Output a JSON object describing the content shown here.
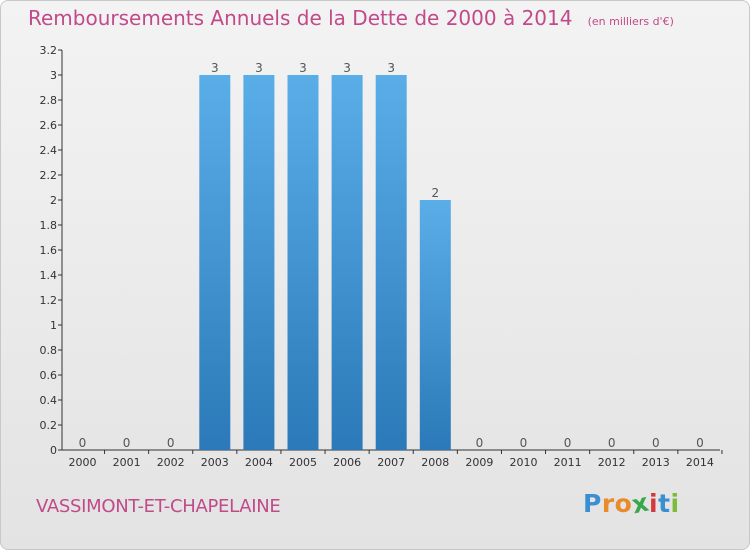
{
  "chart_data": {
    "type": "bar",
    "title": "Remboursements Annuels de la Dette de 2000 à 2014",
    "unit_label": "(en milliers d'€)",
    "categories": [
      "2000",
      "2001",
      "2002",
      "2003",
      "2004",
      "2005",
      "2006",
      "2007",
      "2008",
      "2009",
      "2010",
      "2011",
      "2012",
      "2013",
      "2014"
    ],
    "values": [
      0,
      0,
      0,
      3,
      3,
      3,
      3,
      3,
      2,
      0,
      0,
      0,
      0,
      0,
      0
    ],
    "data_labels": [
      "0",
      "0",
      "0",
      "3",
      "3",
      "3",
      "3",
      "3",
      "2",
      "0",
      "0",
      "0",
      "0",
      "0",
      "0"
    ],
    "ylim": [
      0,
      3.2
    ],
    "y_ticks": [
      "0",
      "0.2",
      "0.4",
      "0.6",
      "0.8",
      "1",
      "1.2",
      "1.4",
      "1.6",
      "1.8",
      "2",
      "2.2",
      "2.4",
      "2.6",
      "2.8",
      "3",
      "3.2"
    ],
    "y_tick_values": [
      0,
      0.2,
      0.4,
      0.6,
      0.8,
      1,
      1.2,
      1.4,
      1.6,
      1.8,
      2,
      2.2,
      2.4,
      2.6,
      2.8,
      3,
      3.2
    ],
    "xlabel": "",
    "ylabel": "",
    "grid": false,
    "bar_color_top": "#5aaee8",
    "bar_color_bottom": "#2b79b8"
  },
  "footer": {
    "commune": "VASSIMONT-ET-CHAPELAINE"
  },
  "logo": {
    "text": "Proxiti",
    "letters": [
      "P",
      "r",
      "o",
      "x",
      "i",
      "t",
      "i"
    ],
    "letter_colors": [
      "#3a8fd0",
      "#e98a2b",
      "#e98a2b",
      "#3aa84a",
      "#d33b3b",
      "#3a8fd0",
      "#7dbb3a"
    ]
  },
  "colors": {
    "title": "#c04a8a",
    "axis": "#333333"
  }
}
